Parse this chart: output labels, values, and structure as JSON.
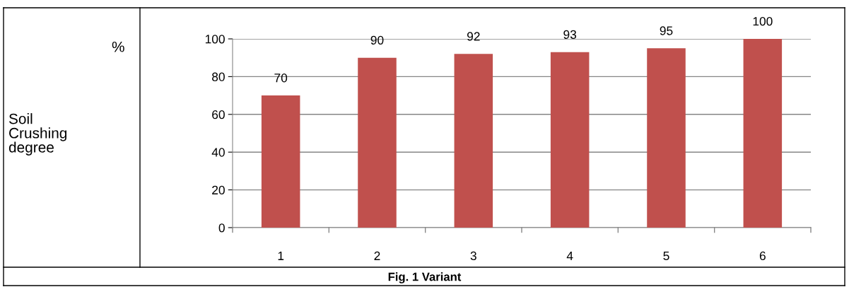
{
  "chart_data": {
    "type": "bar",
    "title": "Fig. 1 Variant",
    "annotations": [
      "%",
      "Soil Crushing degree"
    ],
    "categories": [
      "1",
      "2",
      "3",
      "4",
      "5",
      "6"
    ],
    "values": [
      70,
      90,
      92,
      93,
      95,
      100
    ],
    "color": "#c0504d",
    "ylim": [
      0,
      100
    ],
    "yticks": [
      0,
      20,
      40,
      60,
      80,
      100
    ],
    "grid": "y",
    "data_labels": true,
    "legend": false
  }
}
